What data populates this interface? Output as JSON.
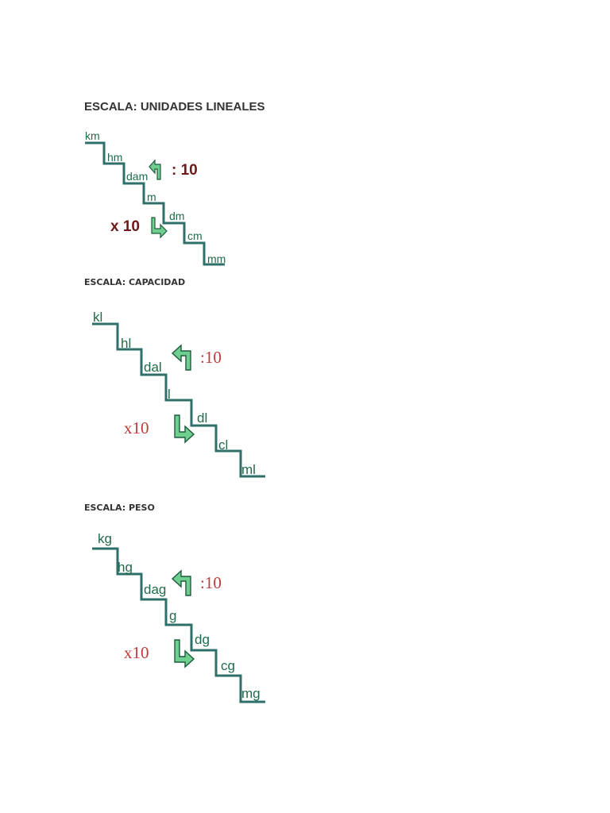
{
  "sections": [
    {
      "title": "ESCALA: UNIDADES LINEALES",
      "units": [
        "km",
        "hm",
        "dam",
        "m",
        "dm",
        "cm",
        "mm"
      ],
      "divide_label": ": 10",
      "multiply_label": "x 10"
    },
    {
      "title": "ESCALA: CAPACIDAD",
      "units": [
        "kl",
        "hl",
        "dal",
        "l",
        "dl",
        "cl",
        "ml"
      ],
      "divide_label": ":10",
      "multiply_label": "x10"
    },
    {
      "title": "ESCALA: PESO",
      "units": [
        "kg",
        "hg",
        "dag",
        "g",
        "dg",
        "cg",
        "mg"
      ],
      "divide_label": ":10",
      "multiply_label": "x10"
    }
  ],
  "colors": {
    "stair_line": "#2f6f6a",
    "unit_text": "#1f6b4a",
    "arrow_fill": "#6fcf8f",
    "arrow_stroke": "#1f5a40",
    "op_text_bold": "#6b1a1a",
    "op_text_serif": "#c0393b",
    "heading_text": "#333333"
  },
  "icons": [
    "arrow-up-left-icon",
    "arrow-down-right-icon"
  ]
}
